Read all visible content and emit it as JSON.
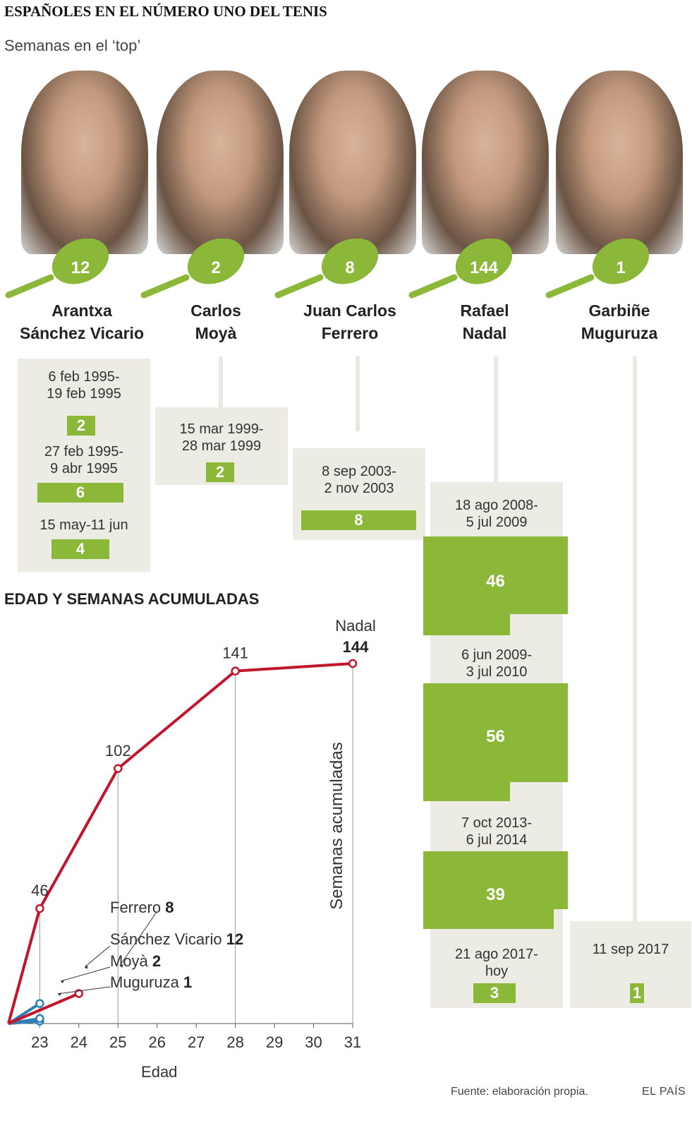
{
  "title": "ESPAÑOLES EN EL NÚMERO UNO DEL TENIS",
  "subtitle": "Semanas en el ‘top’",
  "players": [
    {
      "id": "sanchez-vicario",
      "name_line1": "Arantxa",
      "name_line2": "Sánchez Vicario",
      "total_weeks": "12",
      "periods": [
        {
          "range_line1": "6 feb 1995-",
          "range_line2": "19 feb 1995",
          "weeks": "2"
        },
        {
          "range_line1": "27 feb 1995-",
          "range_line2": "9 abr 1995",
          "weeks": "6"
        },
        {
          "range_line1": "15 may-11 jun",
          "range_line2": "",
          "weeks": "4"
        }
      ]
    },
    {
      "id": "moya",
      "name_line1": "Carlos",
      "name_line2": "Moyà",
      "total_weeks": "2",
      "periods": [
        {
          "range_line1": "15 mar 1999-",
          "range_line2": "28 mar 1999",
          "weeks": "2"
        }
      ]
    },
    {
      "id": "ferrero",
      "name_line1": "Juan Carlos",
      "name_line2": "Ferrero",
      "total_weeks": "8",
      "periods": [
        {
          "range_line1": "8 sep 2003-",
          "range_line2": "2 nov 2003",
          "weeks": "8"
        }
      ]
    },
    {
      "id": "nadal",
      "name_line1": "Rafael",
      "name_line2": "Nadal",
      "total_weeks": "144",
      "periods": [
        {
          "range_line1": "18 ago 2008-",
          "range_line2": "5 jul 2009",
          "weeks": "46"
        },
        {
          "range_line1": "6 jun 2009-",
          "range_line2": "3 jul 2010",
          "weeks": "56"
        },
        {
          "range_line1": "7 oct 2013-",
          "range_line2": "6 jul 2014",
          "weeks": "39"
        },
        {
          "range_line1": "21 ago 2017-",
          "range_line2": "hoy",
          "weeks": "3"
        }
      ]
    },
    {
      "id": "muguruza",
      "name_line1": "Garbiñe",
      "name_line2": "Muguruza",
      "total_weeks": "1",
      "periods": [
        {
          "range_line1": "11 sep 2017",
          "range_line2": "",
          "weeks": "1"
        }
      ]
    }
  ],
  "chart_section_title": "EDAD Y SEMANAS ACUMULADAS",
  "chart_data": {
    "type": "line",
    "title": "EDAD Y SEMANAS ACUMULADAS",
    "xlabel": "Edad",
    "ylabel": "Semanas acumuladas",
    "xlim": [
      22.2,
      31
    ],
    "ylim": [
      0,
      144
    ],
    "x_ticks": [
      23,
      24,
      25,
      26,
      27,
      28,
      29,
      30,
      31
    ],
    "grid": false,
    "series": [
      {
        "name": "Nadal",
        "value_label": "144",
        "color": "#c0152a",
        "points": [
          [
            22.2,
            0
          ],
          [
            23,
            46
          ],
          [
            25,
            102
          ],
          [
            28,
            141
          ],
          [
            31,
            144
          ]
        ],
        "point_labels": [
          "",
          "46",
          "102",
          "141",
          ""
        ]
      },
      {
        "name": "Sánchez Vicario",
        "value_label": "12",
        "color": "#c0152a",
        "points": [
          [
            22.2,
            0
          ],
          [
            24,
            12
          ]
        ]
      },
      {
        "name": "Ferrero",
        "value_label": "8",
        "color": "#2d7fb8",
        "points": [
          [
            22.2,
            0
          ],
          [
            23,
            8
          ]
        ]
      },
      {
        "name": "Moyà",
        "value_label": "2",
        "color": "#2d7fb8",
        "points": [
          [
            22.2,
            0
          ],
          [
            23,
            2
          ]
        ]
      },
      {
        "name": "Muguruza",
        "value_label": "1",
        "color": "#2d7fb8",
        "points": [
          [
            22.2,
            0
          ],
          [
            23,
            1
          ]
        ]
      }
    ]
  },
  "source": "Fuente: elaboración propia.",
  "brand": "EL PAÍS",
  "colors": {
    "green": "#8cb83a",
    "box": "#ecebe4",
    "red": "#c0152a",
    "blue": "#2d7fb8"
  }
}
